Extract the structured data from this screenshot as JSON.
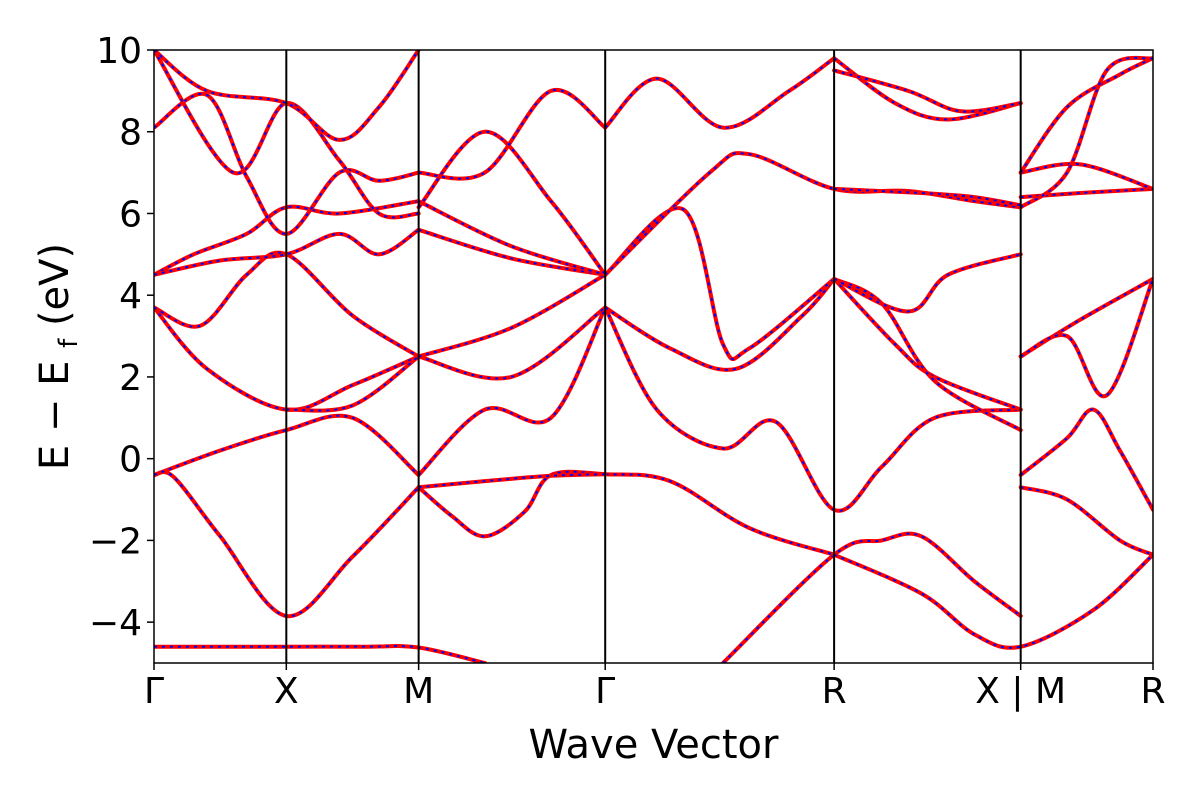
{
  "chart_data": {
    "type": "line",
    "xlabel": "Wave Vector",
    "ylabel": {
      "main": "E − E",
      "sub": "f",
      "unit": " (eV)"
    },
    "ylim": [
      -5,
      10
    ],
    "yticks": [
      {
        "value": -4,
        "label": "−4"
      },
      {
        "value": -2,
        "label": "−2"
      },
      {
        "value": 0,
        "label": "0"
      },
      {
        "value": 2,
        "label": "2"
      },
      {
        "value": 4,
        "label": "4"
      },
      {
        "value": 6,
        "label": "6"
      },
      {
        "value": 8,
        "label": "8"
      },
      {
        "value": 10,
        "label": "10"
      }
    ],
    "kpath": [
      {
        "label": "Γ",
        "x": 0.0
      },
      {
        "label": "X",
        "x": 1.0
      },
      {
        "label": "M",
        "x": 2.0
      },
      {
        "label": "Γ",
        "x": 3.41
      },
      {
        "label": "R",
        "x": 5.14
      },
      {
        "label": "X | M",
        "x": 6.55
      },
      {
        "label": "R",
        "x": 7.55
      }
    ],
    "xlim": [
      0,
      7.55
    ],
    "line_colors": {
      "primary": "#ff0000",
      "overlay": "#0000ff"
    },
    "grid": false,
    "bands": [
      [
        [
          0,
          -4.6
        ],
        [
          0.5,
          -4.6
        ],
        [
          1,
          -4.6
        ],
        [
          1.6,
          -4.6
        ],
        [
          2,
          -4.62
        ],
        [
          2.5,
          -5.0
        ]
      ],
      [
        [
          0,
          -0.4
        ],
        [
          0.15,
          -0.45
        ],
        [
          0.5,
          -1.9
        ],
        [
          1,
          -3.85
        ],
        [
          1.5,
          -2.4
        ],
        [
          2,
          -0.7
        ]
      ],
      [
        [
          2,
          -0.7
        ],
        [
          2.25,
          -1.4
        ],
        [
          2.5,
          -1.9
        ],
        [
          2.8,
          -1.3
        ],
        [
          3,
          -0.4
        ],
        [
          3.41,
          -0.38
        ],
        [
          3.9,
          -0.55
        ],
        [
          4.5,
          -1.7
        ],
        [
          5.14,
          -2.35
        ]
      ],
      [
        [
          2,
          -0.7
        ],
        [
          2.5,
          -0.55
        ],
        [
          3.0,
          -0.42
        ],
        [
          3.41,
          -0.38
        ]
      ],
      [
        [
          4.3,
          -5.0
        ],
        [
          5.14,
          -2.35
        ],
        [
          5.5,
          -2.0
        ],
        [
          5.8,
          -1.9
        ],
        [
          6.2,
          -3.0
        ],
        [
          6.55,
          -3.85
        ]
      ],
      [
        [
          5.14,
          -2.35
        ],
        [
          5.8,
          -3.3
        ],
        [
          6.2,
          -4.3
        ],
        [
          6.55,
          -4.6
        ],
        [
          7.1,
          -3.7
        ],
        [
          7.55,
          -2.35
        ]
      ],
      [
        [
          0,
          -0.4
        ],
        [
          0.5,
          0.2
        ],
        [
          1,
          0.7
        ],
        [
          1.5,
          1.0
        ],
        [
          2,
          -0.4
        ]
      ],
      [
        [
          2,
          -0.4
        ],
        [
          2.5,
          1.2
        ],
        [
          3.0,
          1.0
        ],
        [
          3.41,
          3.7
        ]
      ],
      [
        [
          3.41,
          3.7
        ],
        [
          3.8,
          1.2
        ],
        [
          4.3,
          0.25
        ],
        [
          4.7,
          0.9
        ],
        [
          5.14,
          -1.25
        ],
        [
          5.5,
          -0.2
        ],
        [
          5.9,
          1.0
        ],
        [
          6.55,
          1.2
        ]
      ],
      [
        [
          6.55,
          -0.4
        ],
        [
          6.9,
          0.5
        ],
        [
          7.1,
          1.2
        ],
        [
          7.3,
          0.2
        ],
        [
          7.55,
          -1.25
        ]
      ],
      [
        [
          6.55,
          -0.7
        ],
        [
          6.9,
          -1.0
        ],
        [
          7.3,
          -2.0
        ],
        [
          7.55,
          -2.35
        ]
      ],
      [
        [
          0,
          3.7
        ],
        [
          0.4,
          2.2
        ],
        [
          1,
          1.2
        ],
        [
          1.5,
          1.8
        ],
        [
          2,
          2.5
        ]
      ],
      [
        [
          0,
          3.7
        ],
        [
          0.35,
          3.25
        ],
        [
          0.7,
          4.5
        ],
        [
          1,
          5.0
        ],
        [
          1.5,
          3.5
        ],
        [
          2,
          2.5
        ]
      ],
      [
        [
          1,
          1.2
        ],
        [
          1.5,
          1.3
        ],
        [
          2,
          2.5
        ]
      ],
      [
        [
          2,
          2.5
        ],
        [
          2.7,
          2.0
        ],
        [
          3.41,
          3.7
        ]
      ],
      [
        [
          2,
          2.5
        ],
        [
          2.7,
          3.2
        ],
        [
          3.41,
          4.5
        ]
      ],
      [
        [
          3.41,
          3.7
        ],
        [
          3.9,
          2.7
        ],
        [
          4.4,
          2.2
        ],
        [
          4.9,
          3.5
        ],
        [
          5.14,
          4.4
        ]
      ],
      [
        [
          3.41,
          4.5
        ],
        [
          4.0,
          6.1
        ],
        [
          4.3,
          2.8
        ],
        [
          4.5,
          2.7
        ],
        [
          5.14,
          4.4
        ]
      ],
      [
        [
          5.14,
          4.4
        ],
        [
          5.6,
          2.8
        ],
        [
          5.9,
          2.0
        ],
        [
          6.55,
          1.2
        ]
      ],
      [
        [
          5.14,
          4.4
        ],
        [
          5.5,
          3.8
        ],
        [
          5.9,
          1.9
        ],
        [
          6.55,
          0.7
        ]
      ],
      [
        [
          5.14,
          4.4
        ],
        [
          5.7,
          3.6
        ],
        [
          6.0,
          4.5
        ],
        [
          6.55,
          5.0
        ]
      ],
      [
        [
          6.55,
          2.5
        ],
        [
          7.0,
          3.4
        ],
        [
          7.55,
          4.4
        ]
      ],
      [
        [
          6.55,
          2.5
        ],
        [
          6.9,
          3.0
        ],
        [
          7.2,
          1.55
        ],
        [
          7.55,
          4.4
        ]
      ],
      [
        [
          0,
          4.5
        ],
        [
          0.3,
          5.0
        ],
        [
          0.7,
          5.5
        ],
        [
          1,
          6.15
        ],
        [
          1.4,
          6.0
        ],
        [
          2,
          6.3
        ]
      ],
      [
        [
          0,
          4.5
        ],
        [
          0.5,
          4.85
        ],
        [
          1,
          5.0
        ],
        [
          1.4,
          5.5
        ],
        [
          1.7,
          5.0
        ],
        [
          2,
          5.6
        ]
      ],
      [
        [
          2,
          5.6
        ],
        [
          2.7,
          4.9
        ],
        [
          3.41,
          4.5
        ]
      ],
      [
        [
          2,
          6.3
        ],
        [
          2.7,
          5.2
        ],
        [
          3.41,
          4.5
        ]
      ],
      [
        [
          2,
          6.15
        ],
        [
          2.5,
          8.0
        ],
        [
          3.0,
          6.3
        ],
        [
          3.41,
          4.5
        ]
      ],
      [
        [
          3.41,
          4.5
        ],
        [
          4.2,
          7.0
        ],
        [
          4.5,
          7.45
        ],
        [
          5.14,
          6.6
        ],
        [
          5.7,
          6.55
        ],
        [
          6.2,
          6.3
        ],
        [
          6.55,
          6.15
        ]
      ],
      [
        [
          5.14,
          6.6
        ],
        [
          5.8,
          6.5
        ],
        [
          6.2,
          6.4
        ],
        [
          6.55,
          6.2
        ]
      ],
      [
        [
          6.55,
          6.4
        ],
        [
          7.0,
          6.5
        ],
        [
          7.55,
          6.6
        ]
      ],
      [
        [
          6.55,
          7.0
        ],
        [
          7.0,
          7.2
        ],
        [
          7.55,
          6.6
        ]
      ],
      [
        [
          0,
          8.1
        ],
        [
          0.4,
          8.9
        ],
        [
          0.7,
          6.9
        ],
        [
          1,
          5.5
        ],
        [
          1.4,
          7.0
        ],
        [
          1.7,
          6.8
        ],
        [
          2,
          7.0
        ]
      ],
      [
        [
          0,
          10.0
        ],
        [
          0.6,
          7.0
        ],
        [
          1,
          8.7
        ],
        [
          1.4,
          7.3
        ],
        [
          1.7,
          6.0
        ],
        [
          2,
          6.0
        ]
      ],
      [
        [
          0,
          10.0
        ],
        [
          0.4,
          9.0
        ],
        [
          1,
          8.7
        ],
        [
          1.4,
          7.8
        ],
        [
          1.7,
          8.6
        ],
        [
          2,
          10.0
        ]
      ],
      [
        [
          2,
          7.0
        ],
        [
          2.5,
          7.0
        ],
        [
          3.0,
          9.0
        ],
        [
          3.41,
          8.1
        ]
      ],
      [
        [
          3.41,
          8.1
        ],
        [
          3.8,
          9.3
        ],
        [
          4.3,
          8.1
        ],
        [
          4.8,
          9.0
        ],
        [
          5.14,
          9.8
        ]
      ],
      [
        [
          5.14,
          9.8
        ],
        [
          5.6,
          8.7
        ],
        [
          6.0,
          8.3
        ],
        [
          6.55,
          8.7
        ]
      ],
      [
        [
          5.14,
          9.5
        ],
        [
          5.7,
          9.0
        ],
        [
          6.1,
          8.5
        ],
        [
          6.55,
          8.7
        ]
      ],
      [
        [
          6.55,
          7.0
        ],
        [
          6.9,
          8.6
        ],
        [
          7.3,
          9.4
        ],
        [
          7.55,
          9.8
        ]
      ],
      [
        [
          6.55,
          6.15
        ],
        [
          6.9,
          7.0
        ],
        [
          7.2,
          9.5
        ],
        [
          7.55,
          9.8
        ]
      ]
    ]
  }
}
